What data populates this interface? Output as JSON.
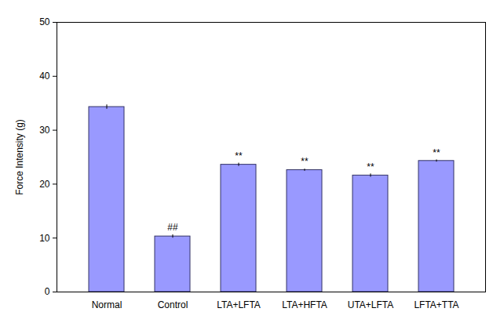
{
  "chart_data": {
    "type": "bar",
    "y_label": "Force Intensity (g)",
    "categories": [
      "Normal",
      "Control",
      "LTA+LFTA",
      "LTA+HFTA",
      "UTA+LFTA",
      "LFTA+TTA"
    ],
    "values": [
      34.3,
      10.3,
      23.6,
      22.6,
      21.6,
      24.3
    ],
    "errors": [
      0.4,
      0.3,
      0.3,
      0.2,
      0.3,
      0.2
    ],
    "annotations": [
      {
        "category": "Control",
        "text": "##"
      },
      {
        "category": "LTA+LFTA",
        "text": "**"
      },
      {
        "category": "LTA+HFTA",
        "text": "**"
      },
      {
        "category": "UTA+LFTA",
        "text": "**"
      },
      {
        "category": "LFTA+TTA",
        "text": "**"
      }
    ],
    "color": "#9999ff",
    "ylim": [
      0,
      50
    ],
    "yticks": [
      0,
      10,
      20,
      30,
      40,
      50
    ],
    "grid": false
  }
}
